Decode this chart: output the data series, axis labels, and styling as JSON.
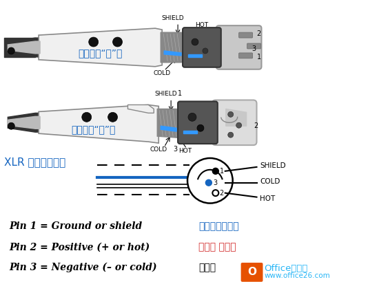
{
  "label_male": "（俗称：“公”）",
  "label_female": "（俗称：“母”）",
  "label_xlr": "XLR 插头（卡农）",
  "shield_label": "SHIELD",
  "hot_label": "HOT",
  "cold_label": "COLD",
  "pin1_en": "Pin 1 = Ground or shield",
  "pin1_cn": "接地端（屏蔽）",
  "pin2_en": "Pin 2 = Positive (+ or hot)",
  "pin2_cn": "热端， 信号＋",
  "pin3_en": "Pin 3 = Negative (– or cold)",
  "pin3_cn": "冷端，",
  "color_blue": "#1565C0",
  "color_red": "#D32F2F",
  "color_black": "#000000",
  "color_wire_blue": "#1565C0",
  "color_white": "#ffffff",
  "watermark_color": "#29B6F6",
  "watermark_text": "Office教程网",
  "watermark_url": "www.office26.com"
}
